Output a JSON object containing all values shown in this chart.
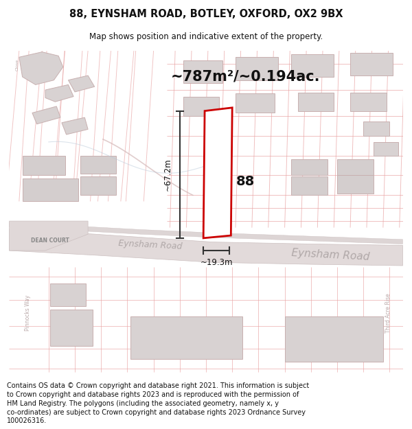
{
  "title_line1": "88, EYNSHAM ROAD, BOTLEY, OXFORD, OX2 9BX",
  "title_line2": "Map shows position and indicative extent of the property.",
  "area_text": "~787m²/~0.194ac.",
  "label_88": "88",
  "dim_height": "~67.2m",
  "dim_width": "~19.3m",
  "road_label_main": "Eynsham Road",
  "road_label_left": "Eynsham Road",
  "road_label_dean": "DEAN COURT",
  "road_label_pinnocks": "Pinnocks Way",
  "road_label_third": "Third Acre Rise",
  "footer_text": "Contains OS data © Crown copyright and database right 2021. This information is subject\nto Crown copyright and database rights 2023 and is reproduced with the permission of\nHM Land Registry. The polygons (including the associated geometry, namely x, y\nco-ordinates) are subject to Crown copyright and database rights 2023 Ordnance Survey\n100026316.",
  "map_bg": "#f7f3f3",
  "road_band_color": "#e8e0e0",
  "road_edge_color": "#d4c8c8",
  "pink_line": "#e8a0a0",
  "red_color": "#cc0000",
  "building_fill": "#d8d2d2",
  "building_edge": "#c8b0b0",
  "dim_color": "#333333",
  "road_text_color": "#aaaaaa",
  "white": "#ffffff",
  "title_fs": 10.5,
  "subtitle_fs": 8.5,
  "area_fs": 16,
  "footer_fs": 7.0
}
